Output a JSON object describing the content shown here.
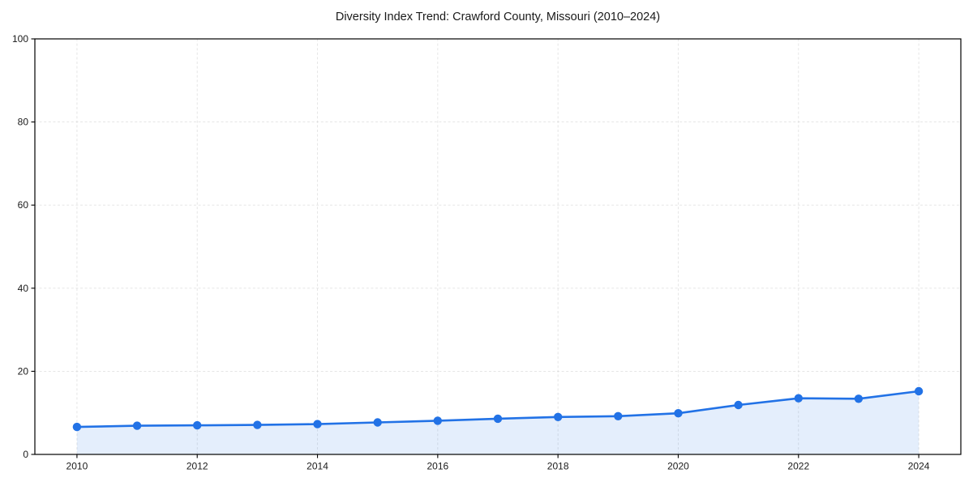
{
  "chart": {
    "title": "Diversity Index Trend: Crawford County, Missouri (2010–2024)"
  },
  "chart_data": {
    "type": "line",
    "title": "Diversity Index Trend: Crawford County, Missouri (2010–2024)",
    "x": [
      2010,
      2011,
      2012,
      2013,
      2014,
      2015,
      2016,
      2017,
      2018,
      2019,
      2020,
      2021,
      2022,
      2023,
      2024
    ],
    "values": [
      6.6,
      6.9,
      7.0,
      7.1,
      7.3,
      7.7,
      8.1,
      8.6,
      9.0,
      9.2,
      9.9,
      11.9,
      13.5,
      13.4,
      15.2
    ],
    "xlabel": "",
    "ylabel": "",
    "xticks": [
      "2010",
      "2012",
      "2014",
      "2016",
      "2018",
      "2020",
      "2022",
      "2024"
    ],
    "yticks": [
      "0",
      "20",
      "40",
      "60",
      "80",
      "100"
    ],
    "xlim": [
      2009.3,
      2024.7
    ],
    "ylim": [
      0,
      100
    ],
    "grid": "dashed",
    "legend": "none",
    "marker": "circle",
    "area_fill": true,
    "colors": {
      "line": "#2272e6",
      "marker": "#2272e6",
      "fill": "rgba(34,114,230,0.12)",
      "grid": "#cccccc",
      "axis": "#000000",
      "tick_text": "#1a1a1a"
    }
  }
}
